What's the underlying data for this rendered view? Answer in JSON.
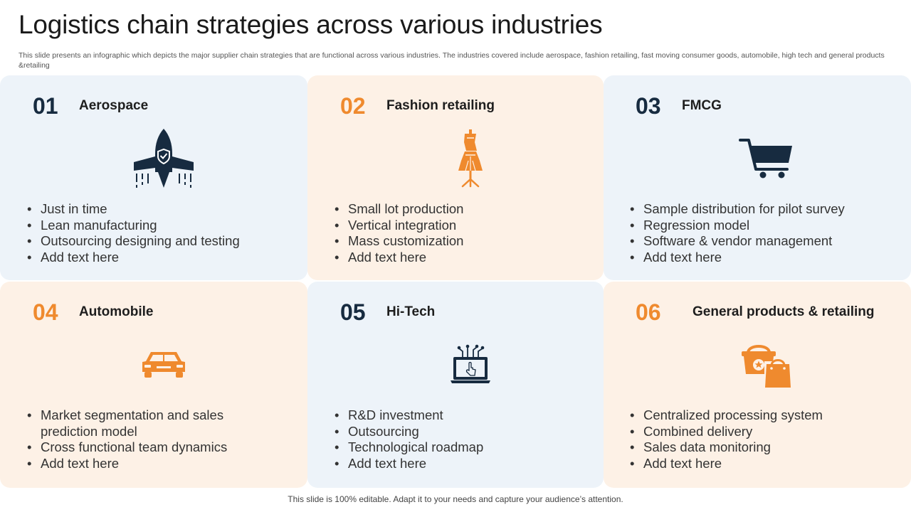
{
  "title": "Logistics chain strategies across various industries",
  "subtitle": "This slide presents an infographic which depicts the major supplier chain strategies that are functional across various industries. The industries covered include aerospace, fashion retailing, fast moving consumer goods, automobile, high tech and general products &retailing",
  "cards": [
    {
      "number": "01",
      "heading": "Aerospace",
      "icon": "rocket-icon",
      "bullets": [
        "Just in time",
        "Lean manufacturing",
        "Outsourcing designing and testing",
        "Add text here"
      ]
    },
    {
      "number": "02",
      "heading": "Fashion retailing",
      "icon": "dress-mannequin-icon",
      "bullets": [
        "Small lot production",
        "Vertical integration",
        "Mass customization",
        "Add text here"
      ]
    },
    {
      "number": "03",
      "heading": "FMCG",
      "icon": "shopping-cart-icon",
      "bullets": [
        "Sample distribution for pilot survey",
        "Regression model",
        "Software & vendor management",
        "Add text here"
      ]
    },
    {
      "number": "04",
      "heading": "Automobile",
      "icon": "car-icon",
      "bullets": [
        "Market segmentation and sales prediction model",
        "Cross functional team dynamics",
        "Add text here"
      ]
    },
    {
      "number": "05",
      "heading": "Hi-Tech",
      "icon": "laptop-touch-icon",
      "bullets": [
        "R&D investment",
        "Outsourcing",
        "Technological roadmap",
        "Add text here"
      ]
    },
    {
      "number": "06",
      "heading": "General products & retailing",
      "icon": "shopping-basket-bag-icon",
      "bullets": [
        "Centralized processing system",
        "Combined delivery",
        "Sales data monitoring",
        "Add text here"
      ]
    }
  ],
  "footer": "This slide is 100% editable. Adapt it to your needs and capture your audience’s attention.",
  "colors": {
    "navy": "#172b40",
    "orange": "#ef8a2e",
    "card_blue": "#edf3f9",
    "card_peach": "#fdf1e6"
  }
}
